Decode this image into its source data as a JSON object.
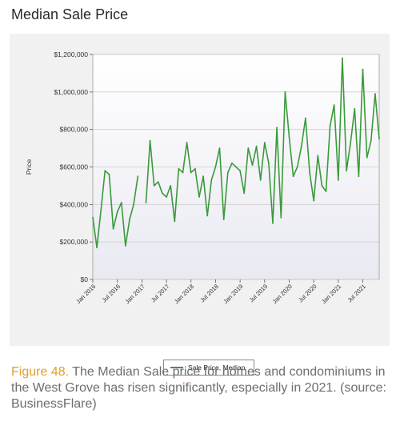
{
  "page_title": "Median Sale Price",
  "caption": {
    "label": "Figure 48.",
    "text": "The Median Sale price for homes and condominiums in the West Grove has risen significantly, especially in 2021. (source: BusinessFlare)"
  },
  "colors": {
    "line": "#3a9a3a",
    "caption_label": "#e0a02c",
    "caption_text": "#6d6d6d",
    "frame_bg": "#f1f1f1"
  },
  "chart_data": {
    "type": "line",
    "title": "",
    "xlabel": "",
    "ylabel": "Price",
    "ylim": [
      0,
      1200000
    ],
    "grid": true,
    "legend": "bottom-center",
    "y_ticks": [
      0,
      200000,
      400000,
      600000,
      800000,
      1000000,
      1200000
    ],
    "y_tick_labels": [
      "$0",
      "$200,000",
      "$400,000",
      "$600,000",
      "$800,000",
      "$1,000,000",
      "$1,200,000"
    ],
    "x_tick_labels": [
      "Jan 2016",
      "Jul 2016",
      "Jan 2017",
      "Jul 2017",
      "Jan 2018",
      "Jul 2018",
      "Jan 2019",
      "Jul 2019",
      "Jan 2020",
      "Jul 2020",
      "Jan 2021",
      "Jul 2021"
    ],
    "x_tick_months": [
      0,
      6,
      12,
      18,
      24,
      30,
      36,
      42,
      48,
      54,
      60,
      66
    ],
    "series": [
      {
        "name": "Sale Price, Median",
        "x": [
          "2016-01",
          "2016-02",
          "2016-03",
          "2016-04",
          "2016-05",
          "2016-06",
          "2016-07",
          "2016-08",
          "2016-09",
          "2016-10",
          "2016-11",
          "2016-12",
          "2017-01",
          "2017-02",
          "2017-03",
          "2017-04",
          "2017-05",
          "2017-06",
          "2017-07",
          "2017-08",
          "2017-09",
          "2017-10",
          "2017-11",
          "2017-12",
          "2018-01",
          "2018-02",
          "2018-03",
          "2018-04",
          "2018-05",
          "2018-06",
          "2018-07",
          "2018-08",
          "2018-09",
          "2018-10",
          "2018-11",
          "2018-12",
          "2019-01",
          "2019-02",
          "2019-03",
          "2019-04",
          "2019-05",
          "2019-06",
          "2019-07",
          "2019-08",
          "2019-09",
          "2019-10",
          "2019-11",
          "2019-12",
          "2020-01",
          "2020-02",
          "2020-03",
          "2020-04",
          "2020-05",
          "2020-06",
          "2020-07",
          "2020-08",
          "2020-09",
          "2020-10",
          "2020-11",
          "2020-12",
          "2021-01",
          "2021-02",
          "2021-03",
          "2021-04",
          "2021-05",
          "2021-06",
          "2021-07",
          "2021-08",
          "2021-09",
          "2021-10",
          "2021-11"
        ],
        "values": [
          330000,
          170000,
          370000,
          580000,
          560000,
          270000,
          360000,
          410000,
          180000,
          320000,
          400000,
          550000,
          null,
          410000,
          740000,
          500000,
          520000,
          460000,
          440000,
          500000,
          310000,
          590000,
          570000,
          730000,
          570000,
          590000,
          440000,
          550000,
          340000,
          530000,
          600000,
          700000,
          320000,
          570000,
          620000,
          600000,
          580000,
          460000,
          700000,
          610000,
          710000,
          530000,
          730000,
          620000,
          300000,
          810000,
          330000,
          1000000,
          760000,
          550000,
          600000,
          710000,
          860000,
          570000,
          420000,
          660000,
          500000,
          470000,
          820000,
          930000,
          530000,
          1180000,
          580000,
          730000,
          910000,
          550000,
          1120000,
          650000,
          740000,
          990000,
          750000
        ]
      }
    ]
  }
}
